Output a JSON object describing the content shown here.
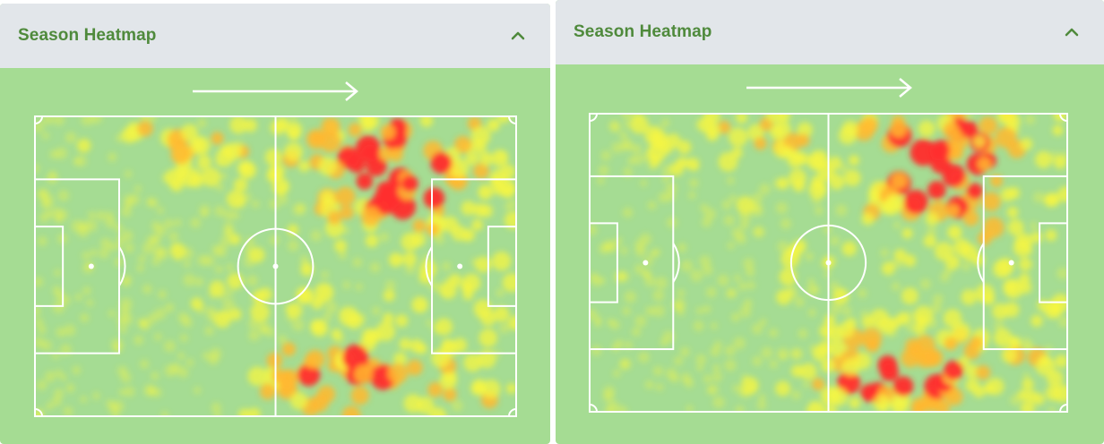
{
  "panels": [
    {
      "title": "Season Heatmap",
      "collapse_icon": "chevron-up-icon",
      "attack_direction": "left-to-right",
      "heatmap_seed": 7,
      "hot_zones": "top-right attacking third, bottom-right"
    },
    {
      "title": "Season Heatmap",
      "collapse_icon": "chevron-up-icon",
      "attack_direction": "left-to-right",
      "heatmap_seed": 23,
      "hot_zones": "top-right attacking third, bottom-right"
    }
  ],
  "colors": {
    "pitch": "#a5dc93",
    "header": "#e2e6ea",
    "title": "#4f8a3c",
    "lines": "#ffffff",
    "heat_low": "#f5f542",
    "heat_mid": "#ffb830",
    "heat_high": "#ff2d2d"
  }
}
